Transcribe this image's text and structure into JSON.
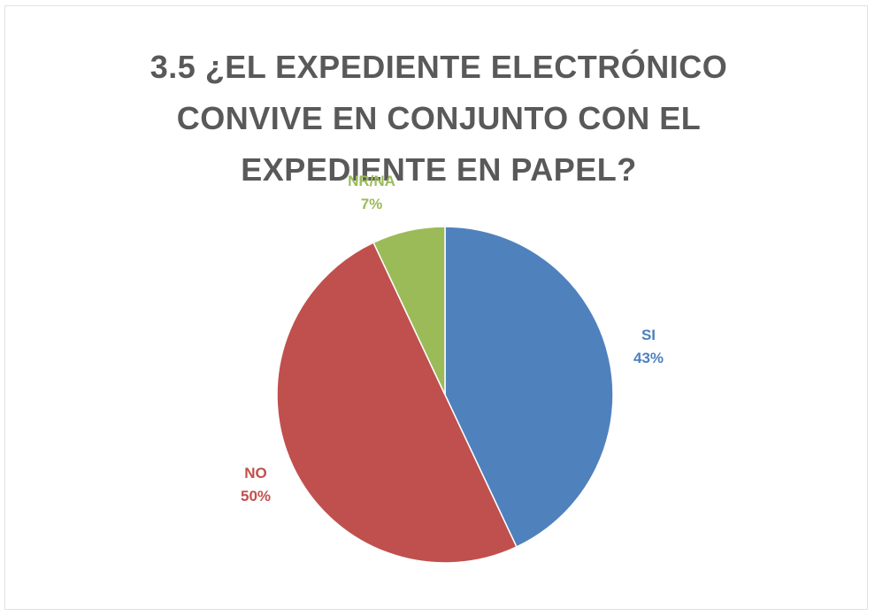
{
  "chart_data": {
    "type": "pie",
    "title_lines": [
      "3.5 ¿EL EXPEDIENTE ELECTRÓNICO",
      "CONVIVE EN CONJUNTO CON EL",
      "EXPEDIENTE EN PAPEL?"
    ],
    "slices": [
      {
        "label": "SI",
        "value": 43,
        "display": "43%",
        "color": "#4f81bd"
      },
      {
        "label": "NO",
        "value": 50,
        "display": "50%",
        "color": "#c0504d"
      },
      {
        "label": "NR/NA",
        "value": 7,
        "display": "7%",
        "color": "#9bbb59"
      }
    ],
    "start_angle": "12 o'clock",
    "direction": "clockwise"
  }
}
